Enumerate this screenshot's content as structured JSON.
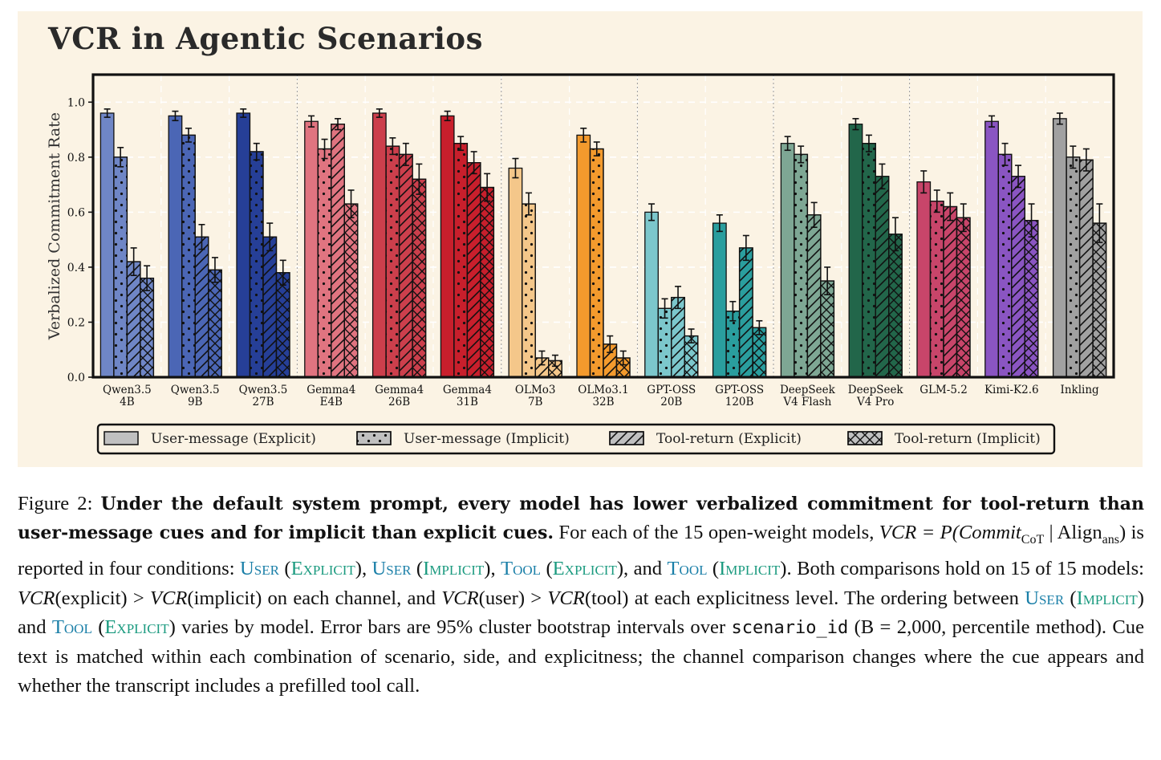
{
  "figure": {
    "title": "VCR in Agentic Scenarios",
    "caption": {
      "label": "Figure 2:",
      "bold": "Under the default system prompt, every model has lower verbalized commitment for tool-return than user-message cues and for implicit than explicit cues.",
      "s1": "For each of the 15 open-weight models,",
      "vcr_eq": "VCR = P(Commit",
      "sub_cot": "CoT",
      "mid": " | Align",
      "sub_ans": "ans",
      "s2": ") is reported in four conditions:",
      "user": "User",
      "tool": "Tool",
      "explicit": "Explicit",
      "implicit": "Implicit",
      "s3": "Both comparisons hold on 15 of 15 models:",
      "vcr": "VCR",
      "s4a": "(explicit) >",
      "s4b": "(implicit) on each channel, and",
      "s4c": "(user) >",
      "s4d": "(tool) at each explicitness level. The ordering between",
      "s5": "varies by model. Error bars are 95% cluster bootstrap intervals over",
      "code": "scenario_id",
      "s6": "(B = 2,000, percentile method). Cue text is matched within each combination of scenario, side, and explicitness; the channel comparison changes where the cue appears and whether the transcript includes a prefilled tool call."
    }
  },
  "chart_data": {
    "type": "bar",
    "title": "VCR in Agentic Scenarios",
    "xlabel": "",
    "ylabel": "Verbalized Commitment Rate",
    "ylim": [
      0,
      1.1
    ],
    "yticks": [
      "0.0",
      "0.2",
      "0.4",
      "0.6",
      "0.8",
      "1.0"
    ],
    "grid": true,
    "legend_position": "bottom-center",
    "categories": [
      [
        "Qwen3.5",
        "4B"
      ],
      [
        "Qwen3.5",
        "9B"
      ],
      [
        "Qwen3.5",
        "27B"
      ],
      [
        "Gemma4",
        "E4B"
      ],
      [
        "Gemma4",
        "26B"
      ],
      [
        "Gemma4",
        "31B"
      ],
      [
        "OLMo3",
        "7B"
      ],
      [
        "OLMo3.1",
        "32B"
      ],
      [
        "GPT-OSS",
        "20B"
      ],
      [
        "GPT-OSS",
        "120B"
      ],
      [
        "DeepSeek",
        "V4 Flash"
      ],
      [
        "DeepSeek",
        "V4 Pro"
      ],
      [
        "GLM-5.2"
      ],
      [
        "Kimi-K2.6"
      ],
      [
        "Inkling"
      ]
    ],
    "model_colors": [
      "#6f86c6",
      "#4b66b5",
      "#263f97",
      "#e07480",
      "#cc3f4c",
      "#c81f2c",
      "#f4c78a",
      "#f39a2d",
      "#7cc7cc",
      "#2a9e9e",
      "#7ea794",
      "#22664a",
      "#c8456a",
      "#8a55c2",
      "#a1a1a1"
    ],
    "series": [
      {
        "name": "User-message (Explicit)",
        "hatch": "none",
        "values": [
          0.96,
          0.95,
          0.96,
          0.93,
          0.96,
          0.95,
          0.76,
          0.88,
          0.6,
          0.56,
          0.85,
          0.92,
          0.71,
          0.93,
          0.94
        ],
        "err": [
          0.015,
          0.017,
          0.015,
          0.02,
          0.015,
          0.017,
          0.035,
          0.025,
          0.03,
          0.03,
          0.025,
          0.02,
          0.04,
          0.02,
          0.02
        ]
      },
      {
        "name": "User-message (Implicit)",
        "hatch": "dots",
        "values": [
          0.8,
          0.88,
          0.82,
          0.83,
          0.84,
          0.85,
          0.63,
          0.83,
          0.25,
          0.24,
          0.81,
          0.85,
          0.64,
          0.81,
          0.8
        ],
        "err": [
          0.035,
          0.025,
          0.03,
          0.035,
          0.03,
          0.025,
          0.04,
          0.025,
          0.035,
          0.035,
          0.03,
          0.03,
          0.04,
          0.04,
          0.04
        ]
      },
      {
        "name": "Tool-return (Explicit)",
        "hatch": "diag",
        "values": [
          0.42,
          0.51,
          0.51,
          0.92,
          0.81,
          0.78,
          0.07,
          0.12,
          0.29,
          0.47,
          0.59,
          0.73,
          0.62,
          0.73,
          0.79
        ],
        "err": [
          0.05,
          0.045,
          0.05,
          0.02,
          0.04,
          0.04,
          0.025,
          0.03,
          0.04,
          0.045,
          0.045,
          0.045,
          0.05,
          0.04,
          0.04
        ]
      },
      {
        "name": "Tool-return (Implicit)",
        "hatch": "cross",
        "values": [
          0.36,
          0.39,
          0.38,
          0.63,
          0.72,
          0.69,
          0.06,
          0.07,
          0.15,
          0.18,
          0.35,
          0.52,
          0.58,
          0.57,
          0.56
        ],
        "err": [
          0.045,
          0.045,
          0.045,
          0.05,
          0.055,
          0.05,
          0.02,
          0.025,
          0.025,
          0.025,
          0.05,
          0.06,
          0.05,
          0.06,
          0.07
        ]
      }
    ]
  }
}
